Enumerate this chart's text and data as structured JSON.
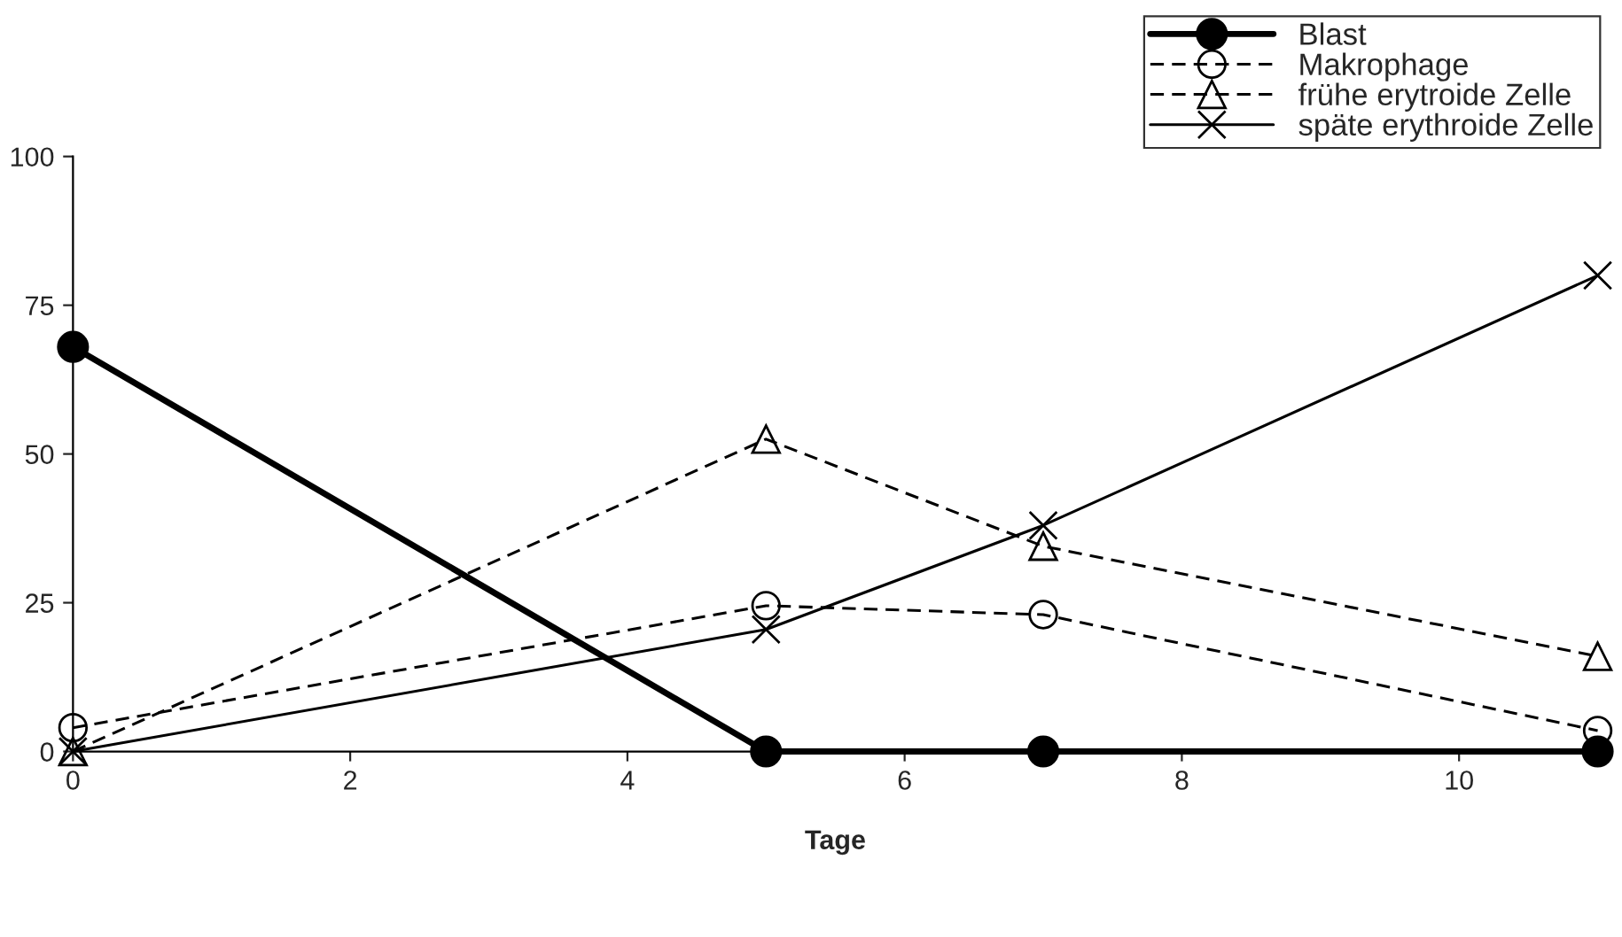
{
  "chart_data": {
    "type": "line",
    "xlabel": "Tage",
    "x": [
      0,
      5,
      7,
      11
    ],
    "series": [
      {
        "name": "Blast",
        "color": "#000000",
        "values": [
          68,
          0,
          0,
          0
        ],
        "marker": "circle",
        "line_style": "solid"
      },
      {
        "name": "Makrophage",
        "color": "#000000",
        "values": [
          4,
          24.5,
          23,
          3.5
        ],
        "marker": "circle",
        "line_style": "dashed"
      },
      {
        "name": "frühe erytroide Zelle",
        "color": "#000000",
        "values": [
          0,
          52.5,
          34.5,
          16
        ],
        "marker": "triangle",
        "line_style": "dashed"
      },
      {
        "name": "späte erythroide Zelle",
        "color": "#000000",
        "values": [
          0,
          20.5,
          38,
          80
        ],
        "marker": "cross",
        "line_style": "solid"
      }
    ],
    "xlim": [
      0,
      11
    ],
    "ylim": [
      0,
      100
    ],
    "xticks": [
      0,
      2,
      4,
      6,
      8,
      10
    ],
    "yticks": [
      0,
      25,
      50,
      75,
      100
    ],
    "grid": false,
    "legend": "top right"
  }
}
